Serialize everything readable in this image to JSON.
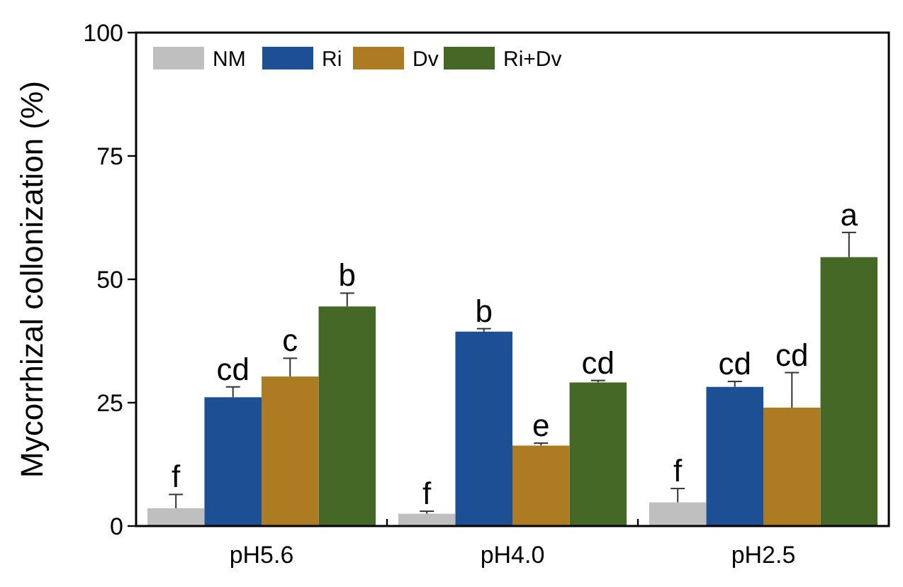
{
  "chart_data": {
    "type": "bar",
    "ylabel": "Mycorrhizal collonization (%)",
    "categories": [
      "pH5.6",
      "pH4.0",
      "pH2.5"
    ],
    "ylim": [
      0,
      100
    ],
    "yticks": [
      0,
      25,
      50,
      75,
      100
    ],
    "grid": false,
    "legend": "top left",
    "series": [
      {
        "name": "NM",
        "color": "#bfbfbf",
        "values": [
          3.6,
          2.5,
          4.8
        ],
        "errors": [
          2.8,
          0.5,
          2.8
        ],
        "value_labels": [
          "f",
          "f",
          "f"
        ]
      },
      {
        "name": "Ri",
        "color": "#1c4f94",
        "values": [
          26.1,
          39.4,
          28.2
        ],
        "errors": [
          2.1,
          0.6,
          1.1
        ],
        "value_labels": [
          "cd",
          "b",
          "cd"
        ]
      },
      {
        "name": "Dv",
        "color": "#ad7b22",
        "values": [
          30.3,
          16.3,
          24.0
        ],
        "errors": [
          3.7,
          0.5,
          7.1
        ],
        "value_labels": [
          "c",
          "e",
          "cd"
        ]
      },
      {
        "name": "Ri+Dv",
        "color": "#456826",
        "values": [
          44.5,
          29.1,
          54.5
        ],
        "errors": [
          2.7,
          0.4,
          5.0
        ],
        "value_labels": [
          "b",
          "cd",
          "a"
        ]
      }
    ]
  }
}
